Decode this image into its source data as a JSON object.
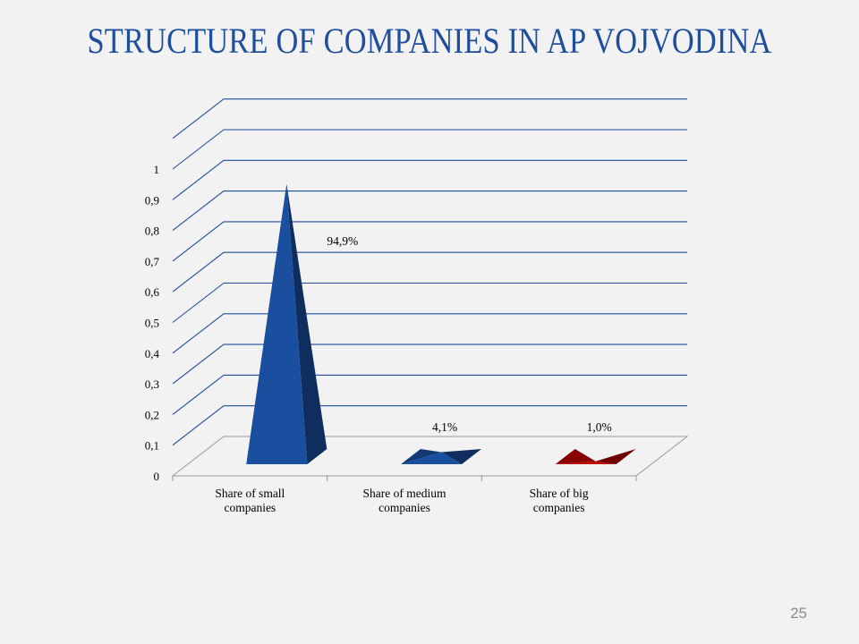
{
  "slide": {
    "title": "STRUCTURE OF COMPANIES IN AP VOJVODINA",
    "page_number": "25"
  },
  "chart_data": {
    "type": "bar",
    "shape": "pyramid-3d",
    "title": "",
    "xlabel": "",
    "ylabel": "",
    "categories": [
      "Share of small companies",
      "Share of medium companies",
      "Share of big companies"
    ],
    "category_label_lines": [
      [
        "Share of small",
        "companies"
      ],
      [
        "Share of medium",
        "companies"
      ],
      [
        "Share of big",
        "companies"
      ]
    ],
    "values": [
      0.949,
      0.041,
      0.01
    ],
    "data_labels": [
      "94,9%",
      "4,1%",
      "1,0%"
    ],
    "colors": [
      "#1a4fa0",
      "#1a4fa0",
      "#c00000"
    ],
    "ylim": [
      0,
      1
    ],
    "yticks": [
      0,
      0.1,
      0.2,
      0.3,
      0.4,
      0.5,
      0.6,
      0.7,
      0.8,
      0.9,
      1
    ],
    "ytick_labels": [
      "0",
      "0,1",
      "0,2",
      "0,3",
      "0,4",
      "0,5",
      "0,6",
      "0,7",
      "0,8",
      "0,9",
      "1"
    ],
    "grid": true,
    "gridline_color": "#1f4e9c",
    "legend": "none"
  }
}
